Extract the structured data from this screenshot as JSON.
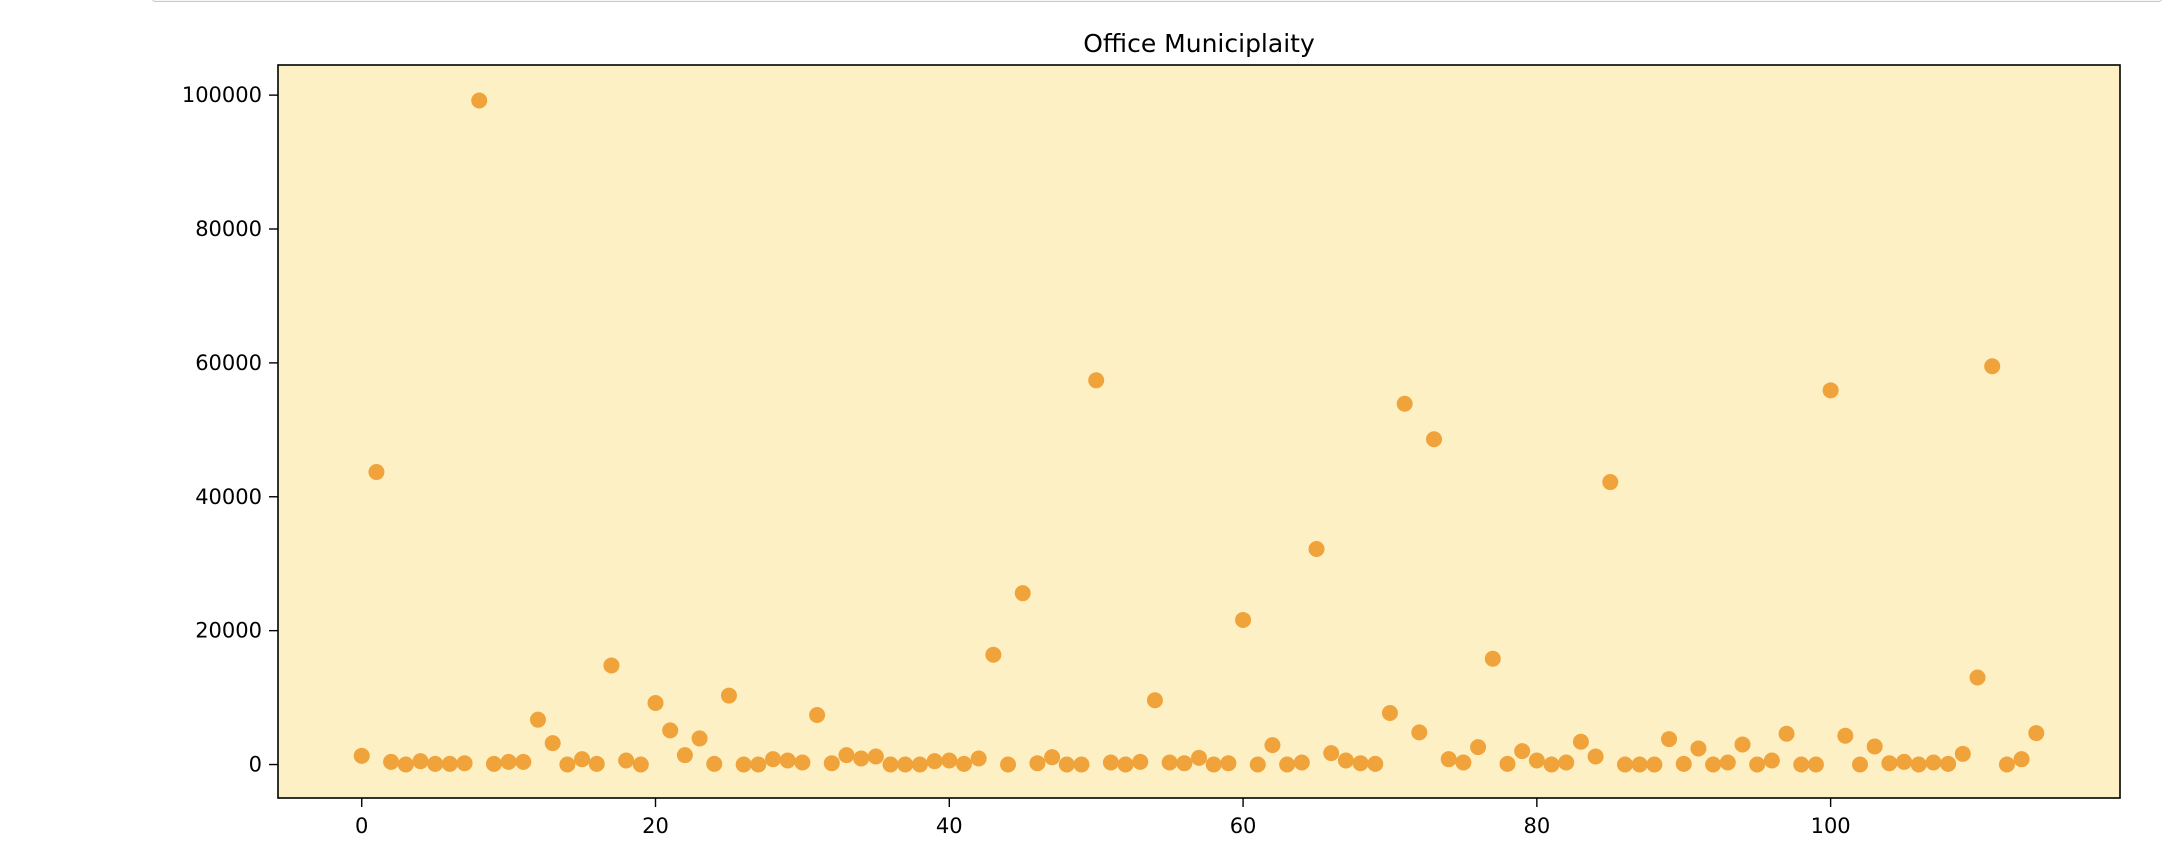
{
  "chart_data": {
    "type": "scatter",
    "title": "Office Municiplaity",
    "xlabel": "",
    "ylabel": "",
    "xlim": [
      -5.7,
      119.7
    ],
    "ylim": [
      -5000,
      104500
    ],
    "x_ticks": [
      0,
      20,
      40,
      60,
      80,
      100
    ],
    "y_ticks": [
      0,
      20000,
      40000,
      60000,
      80000,
      100000
    ],
    "grid": false,
    "background_color": "#fdf0c4",
    "marker_color": "#f0a33a",
    "x": [
      0,
      1,
      2,
      3,
      4,
      5,
      6,
      7,
      8,
      9,
      10,
      11,
      12,
      13,
      14,
      15,
      16,
      17,
      18,
      19,
      20,
      21,
      22,
      23,
      24,
      25,
      26,
      27,
      28,
      29,
      30,
      31,
      32,
      33,
      34,
      35,
      36,
      37,
      38,
      39,
      40,
      41,
      42,
      43,
      44,
      45,
      46,
      47,
      48,
      49,
      50,
      51,
      52,
      53,
      54,
      55,
      56,
      57,
      58,
      59,
      60,
      61,
      62,
      63,
      64,
      65,
      66,
      67,
      68,
      69,
      70,
      71,
      72,
      73,
      74,
      75,
      76,
      77,
      78,
      79,
      80,
      81,
      82,
      83,
      84,
      85,
      86,
      87,
      88,
      89,
      90,
      91,
      92,
      93,
      94,
      95,
      96,
      97,
      98,
      99,
      100,
      101,
      102,
      103,
      104,
      105,
      106,
      107,
      108,
      109,
      110,
      111,
      112,
      113,
      114
    ],
    "y": [
      1300,
      43700,
      400,
      0,
      500,
      100,
      100,
      200,
      99200,
      100,
      400,
      400,
      6700,
      3200,
      0,
      800,
      100,
      14800,
      600,
      0,
      9200,
      5100,
      1400,
      3900,
      100,
      10300,
      0,
      0,
      800,
      600,
      300,
      7400,
      200,
      1400,
      900,
      1200,
      0,
      0,
      0,
      500,
      600,
      100,
      900,
      16400,
      0,
      25600,
      200,
      1100,
      0,
      0,
      57400,
      300,
      0,
      400,
      9600,
      300,
      200,
      1000,
      0,
      200,
      21600,
      0,
      2900,
      0,
      300,
      32200,
      1700,
      600,
      200,
      100,
      7700,
      53900,
      4800,
      48600,
      800,
      300,
      2600,
      15800,
      100,
      2000,
      600,
      0,
      300,
      3400,
      1200,
      42200,
      0,
      0,
      0,
      3800,
      100,
      2400,
      0,
      300,
      3000,
      0,
      600,
      4600,
      0,
      0,
      55900,
      4300,
      0,
      2700,
      200,
      400,
      0,
      300,
      100,
      1600,
      13000,
      59500,
      0,
      800,
      4700
    ]
  }
}
